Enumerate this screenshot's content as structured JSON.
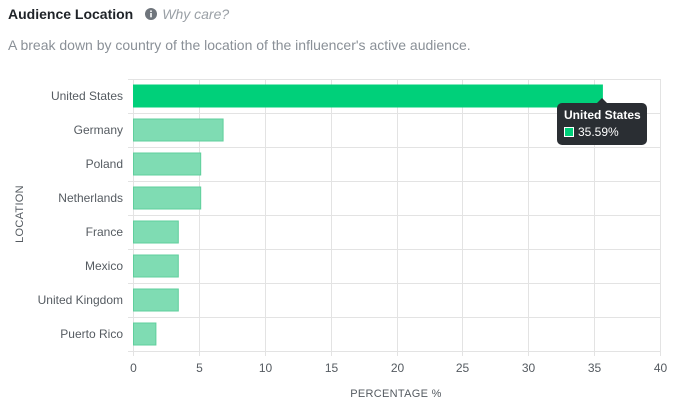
{
  "header": {
    "title": "Audience Location",
    "why_label": "Why care?",
    "info_icon": "info-circle-icon",
    "subtitle": "A break down by country of the location of the influencer's active audience."
  },
  "colors": {
    "highlight_bar": "#00d07a",
    "bar": "#7fdcb3",
    "bar_stroke": "#5fcf9c",
    "grid": "#e3e3e3"
  },
  "chart_data": {
    "type": "bar",
    "orientation": "horizontal",
    "categories": [
      "United States",
      "Germany",
      "Poland",
      "Netherlands",
      "France",
      "Mexico",
      "United Kingdom",
      "Puerto Rico"
    ],
    "values": [
      35.59,
      6.8,
      5.1,
      5.1,
      3.4,
      3.4,
      3.4,
      1.7
    ],
    "highlighted": "United States",
    "xlabel": "PERCENTAGE %",
    "ylabel": "LOCATION",
    "xlim": [
      0,
      40
    ],
    "xticks": [
      0,
      5,
      10,
      15,
      20,
      25,
      30,
      35,
      40
    ],
    "grid": true
  },
  "tooltip": {
    "title": "United States",
    "value": "35.59%"
  }
}
